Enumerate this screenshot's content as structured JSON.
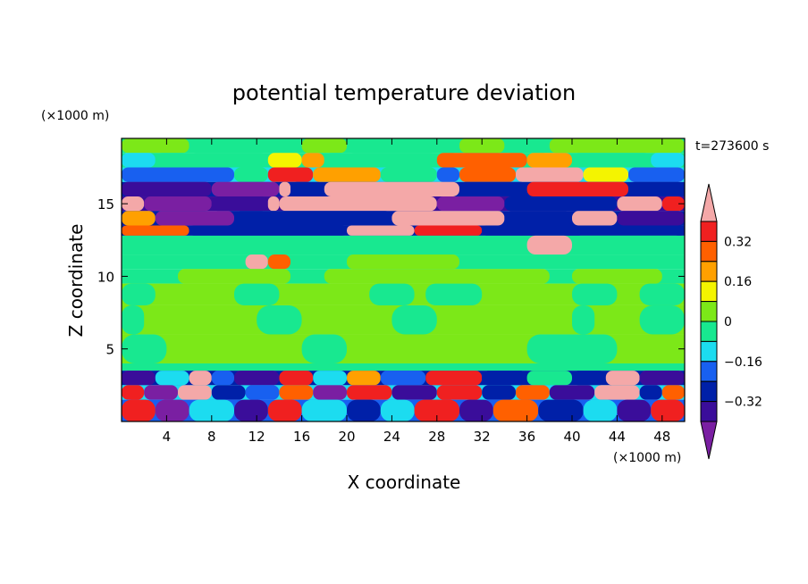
{
  "chart_data": {
    "type": "heatmap",
    "title": "potential temperature deviation",
    "time_label": "t=273600 s",
    "xlabel": "X coordinate",
    "ylabel": "Z coordinate",
    "x_unit": "(×1000 m)",
    "y_unit": "(×1000 m)",
    "xlim": [
      0,
      50
    ],
    "ylim": [
      0,
      19.5
    ],
    "x_ticks": [
      "4",
      "8",
      "12",
      "16",
      "20",
      "24",
      "28",
      "32",
      "36",
      "40",
      "44",
      "48"
    ],
    "y_ticks": [
      "5",
      "10",
      "15"
    ],
    "colorbar": {
      "labels": [
        "0.32",
        "0.16",
        "0",
        "−0.16",
        "−0.32"
      ],
      "levels": [
        -0.4,
        -0.32,
        -0.24,
        -0.16,
        -0.08,
        0,
        0.08,
        0.16,
        0.24,
        0.32,
        0.4
      ],
      "colors": [
        "#7a1fa2",
        "#3a0d9a",
        "#0020a8",
        "#1860f0",
        "#1cdcf0",
        "#18e890",
        "#7ce818",
        "#f4f400",
        "#ffa000",
        "#ff6000",
        "#f02020",
        "#f4a8a8"
      ],
      "extend": "both"
    },
    "rows": [
      {
        "z": [
          19.5,
          18.5
        ],
        "base": 5,
        "patches": [
          [
            0,
            6,
            6
          ],
          [
            6,
            16,
            5
          ],
          [
            16,
            20,
            6
          ],
          [
            20,
            30,
            5
          ],
          [
            30,
            34,
            6
          ],
          [
            34,
            38,
            5
          ],
          [
            38,
            50,
            6
          ]
        ]
      },
      {
        "z": [
          18.5,
          17.5
        ],
        "base": 5,
        "patches": [
          [
            0,
            3,
            4
          ],
          [
            3,
            13,
            5
          ],
          [
            13,
            16,
            7
          ],
          [
            16,
            18,
            8
          ],
          [
            18,
            28,
            5
          ],
          [
            28,
            36,
            9
          ],
          [
            36,
            40,
            8
          ],
          [
            40,
            47,
            5
          ],
          [
            47,
            50,
            4
          ]
        ]
      },
      {
        "z": [
          17.5,
          16.5
        ],
        "base": 4,
        "patches": [
          [
            0,
            10,
            3
          ],
          [
            10,
            13,
            5
          ],
          [
            13,
            17,
            10
          ],
          [
            17,
            23,
            8
          ],
          [
            23,
            28,
            5
          ],
          [
            28,
            30,
            3
          ],
          [
            30,
            35,
            9
          ],
          [
            35,
            41,
            11
          ],
          [
            41,
            45,
            7
          ],
          [
            45,
            50,
            3
          ]
        ]
      },
      {
        "z": [
          16.5,
          15.5
        ],
        "base": 2,
        "patches": [
          [
            0,
            8,
            1
          ],
          [
            8,
            14,
            0
          ],
          [
            14,
            15,
            11
          ],
          [
            15,
            18,
            2
          ],
          [
            18,
            30,
            11
          ],
          [
            30,
            36,
            2
          ],
          [
            36,
            45,
            10
          ],
          [
            45,
            50,
            2
          ]
        ]
      },
      {
        "z": [
          15.5,
          14.5
        ],
        "base": 1,
        "patches": [
          [
            0,
            2,
            11
          ],
          [
            2,
            8,
            0
          ],
          [
            8,
            13,
            1
          ],
          [
            13,
            14,
            11
          ],
          [
            14,
            28,
            11
          ],
          [
            28,
            34,
            0
          ],
          [
            34,
            44,
            2
          ],
          [
            44,
            48,
            11
          ],
          [
            48,
            50,
            10
          ]
        ]
      },
      {
        "z": [
          14.5,
          13.5
        ],
        "base": 2,
        "patches": [
          [
            0,
            3,
            8
          ],
          [
            3,
            10,
            0
          ],
          [
            10,
            24,
            2
          ],
          [
            24,
            34,
            11
          ],
          [
            34,
            40,
            2
          ],
          [
            40,
            44,
            11
          ],
          [
            44,
            50,
            1
          ]
        ]
      },
      {
        "z": [
          13.5,
          12.8
        ],
        "base": 2,
        "patches": [
          [
            0,
            6,
            9
          ],
          [
            6,
            20,
            2
          ],
          [
            20,
            26,
            11
          ],
          [
            26,
            32,
            10
          ],
          [
            32,
            50,
            2
          ]
        ]
      },
      {
        "z": [
          12.8,
          11.5
        ],
        "base": 5,
        "patches": [
          [
            36,
            40,
            11
          ],
          [
            40,
            50,
            5
          ]
        ]
      },
      {
        "z": [
          11.5,
          10.5
        ],
        "base": 5,
        "patches": [
          [
            11,
            13,
            11
          ],
          [
            13,
            15,
            9
          ],
          [
            20,
            30,
            6
          ]
        ]
      },
      {
        "z": [
          10.5,
          9.5
        ],
        "base": 5,
        "patches": [
          [
            5,
            15,
            6
          ],
          [
            18,
            38,
            6
          ],
          [
            40,
            48,
            6
          ]
        ]
      },
      {
        "z": [
          9.5,
          8.0
        ],
        "base": 6,
        "patches": [
          [
            0,
            3,
            5
          ],
          [
            10,
            14,
            5
          ],
          [
            22,
            26,
            5
          ],
          [
            27,
            32,
            5
          ],
          [
            40,
            44,
            5
          ],
          [
            46,
            50,
            5
          ]
        ]
      },
      {
        "z": [
          8.0,
          6.0
        ],
        "base": 6,
        "patches": [
          [
            0,
            2,
            5
          ],
          [
            12,
            16,
            5
          ],
          [
            24,
            28,
            5
          ],
          [
            40,
            42,
            5
          ],
          [
            46,
            50,
            5
          ]
        ]
      },
      {
        "z": [
          6.0,
          4.0
        ],
        "base": 6,
        "patches": [
          [
            0,
            4,
            5
          ],
          [
            16,
            20,
            5
          ],
          [
            36,
            44,
            5
          ]
        ]
      },
      {
        "z": [
          4.0,
          3.5
        ],
        "base": 5,
        "patches": []
      },
      {
        "z": [
          3.5,
          2.5
        ],
        "base": 2,
        "patches": [
          [
            0,
            3,
            1
          ],
          [
            3,
            6,
            4
          ],
          [
            6,
            8,
            11
          ],
          [
            8,
            10,
            3
          ],
          [
            10,
            14,
            1
          ],
          [
            14,
            17,
            10
          ],
          [
            17,
            20,
            4
          ],
          [
            20,
            23,
            8
          ],
          [
            23,
            27,
            3
          ],
          [
            27,
            32,
            10
          ],
          [
            32,
            36,
            2
          ],
          [
            36,
            40,
            5
          ],
          [
            40,
            43,
            2
          ],
          [
            43,
            46,
            11
          ],
          [
            46,
            50,
            1
          ]
        ]
      },
      {
        "z": [
          2.5,
          1.5
        ],
        "base": 4,
        "patches": [
          [
            0,
            2,
            10
          ],
          [
            2,
            5,
            0
          ],
          [
            5,
            8,
            11
          ],
          [
            8,
            11,
            2
          ],
          [
            11,
            14,
            3
          ],
          [
            14,
            17,
            9
          ],
          [
            17,
            20,
            0
          ],
          [
            20,
            24,
            10
          ],
          [
            24,
            28,
            1
          ],
          [
            28,
            32,
            10
          ],
          [
            32,
            35,
            2
          ],
          [
            35,
            38,
            9
          ],
          [
            38,
            42,
            1
          ],
          [
            42,
            46,
            11
          ],
          [
            46,
            48,
            2
          ],
          [
            48,
            50,
            9
          ]
        ]
      },
      {
        "z": [
          1.5,
          0.0
        ],
        "base": 3,
        "patches": [
          [
            0,
            3,
            10
          ],
          [
            3,
            6,
            0
          ],
          [
            6,
            10,
            4
          ],
          [
            10,
            13,
            1
          ],
          [
            13,
            16,
            10
          ],
          [
            16,
            20,
            4
          ],
          [
            20,
            23,
            2
          ],
          [
            23,
            26,
            4
          ],
          [
            26,
            30,
            10
          ],
          [
            30,
            33,
            1
          ],
          [
            33,
            37,
            9
          ],
          [
            37,
            41,
            2
          ],
          [
            41,
            44,
            4
          ],
          [
            44,
            47,
            1
          ],
          [
            47,
            50,
            10
          ]
        ]
      }
    ]
  }
}
